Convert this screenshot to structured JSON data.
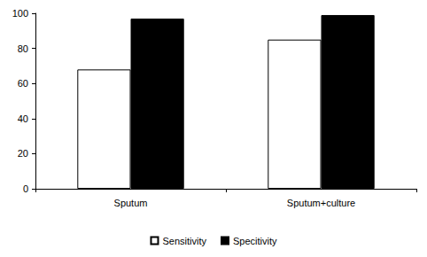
{
  "chart_data": {
    "type": "bar",
    "categories": [
      "Sputum",
      "Sputum+culture"
    ],
    "series": [
      {
        "name": "Sensitivity",
        "color": "#ffffff",
        "values": [
          68,
          85
        ]
      },
      {
        "name": "Specitivity",
        "color": "#000000",
        "values": [
          97,
          99
        ]
      }
    ],
    "ylim": [
      0,
      100
    ],
    "yticks": [
      0,
      20,
      40,
      60,
      80,
      100
    ],
    "grid": false,
    "legend": "bottom"
  }
}
